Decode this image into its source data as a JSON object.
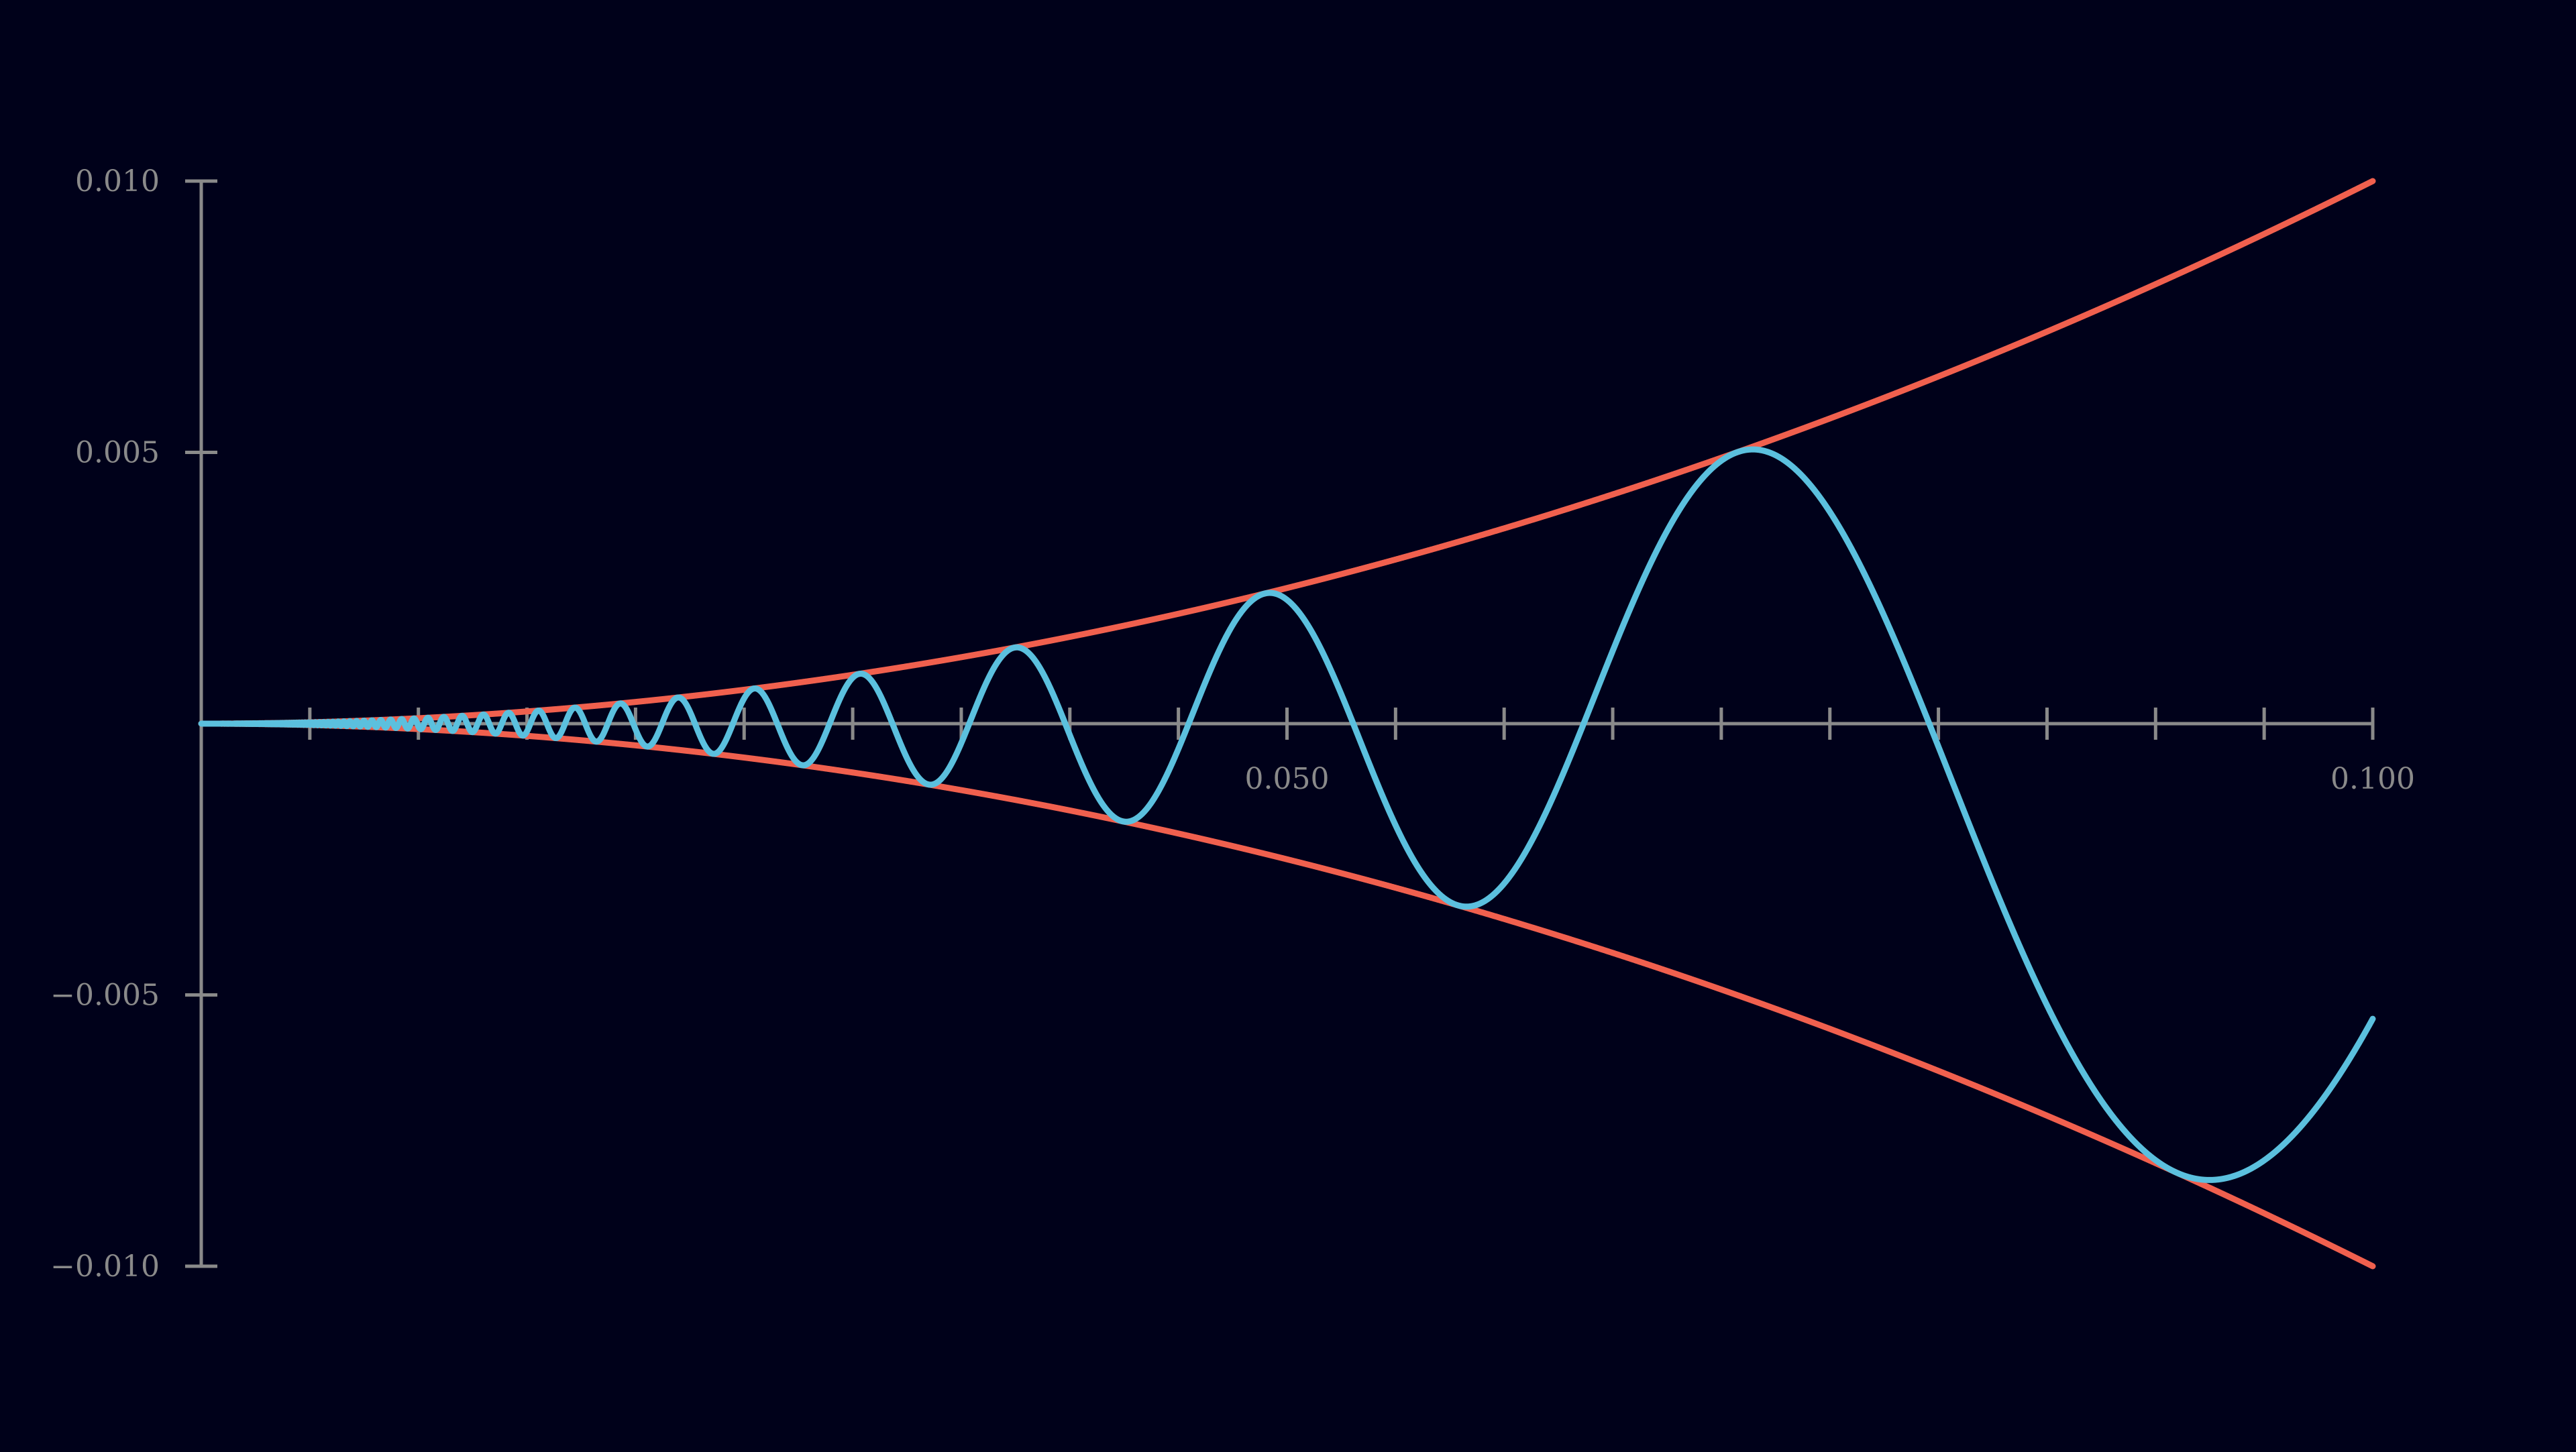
{
  "chart_data": {
    "type": "line",
    "title": "",
    "xlabel": "",
    "ylabel": "",
    "xlim": [
      0,
      0.1
    ],
    "ylim": [
      -0.01,
      0.01
    ],
    "x_ticks": [
      0.005,
      0.01,
      0.015,
      0.02,
      0.025,
      0.03,
      0.035,
      0.04,
      0.045,
      0.05,
      0.055,
      0.06,
      0.065,
      0.07,
      0.075,
      0.08,
      0.085,
      0.09,
      0.095,
      0.1
    ],
    "x_tick_labels": [
      {
        "value": 0.05,
        "label": "0.050"
      },
      {
        "value": 0.1,
        "label": "0.100"
      }
    ],
    "y_tick_labels": [
      {
        "value": 0.01,
        "label": "0.010"
      },
      {
        "value": 0.005,
        "label": "0.005"
      },
      {
        "value": -0.005,
        "label": "−0.005"
      },
      {
        "value": -0.01,
        "label": "−0.010"
      }
    ],
    "grid": false,
    "legend": "none",
    "series": [
      {
        "role": "upper-envelope",
        "color": "#f0604e",
        "formula": "y = x^2",
        "x": [
          0,
          0.01,
          0.02,
          0.03,
          0.04,
          0.05,
          0.06,
          0.07,
          0.08,
          0.09,
          0.1
        ],
        "values": [
          0,
          0.0001,
          0.0004,
          0.0009,
          0.0016,
          0.0025,
          0.0036,
          0.0049,
          0.0064,
          0.0081,
          0.01
        ]
      },
      {
        "role": "lower-envelope",
        "color": "#f0604e",
        "formula": "y = -x^2",
        "x": [
          0,
          0.01,
          0.02,
          0.03,
          0.04,
          0.05,
          0.06,
          0.07,
          0.08,
          0.09,
          0.1
        ],
        "values": [
          0,
          -0.0001,
          -0.0004,
          -0.0009,
          -0.0016,
          -0.0025,
          -0.0036,
          -0.0049,
          -0.0064,
          -0.0081,
          -0.01
        ]
      },
      {
        "role": "oscillation",
        "color": "#5bc0de",
        "formula": "y = x^2 * sin(1/x)",
        "x": [
          0.01,
          0.02,
          0.03,
          0.04,
          0.05,
          0.06,
          0.07,
          0.08,
          0.09,
          0.1
        ],
        "values": [
          -5.06e-05,
          0.000105,
          0.0008,
          5.29e-05,
          0.00228,
          -0.0035,
          0.00482,
          0.00127,
          -0.0074,
          -0.00544
        ]
      }
    ]
  }
}
